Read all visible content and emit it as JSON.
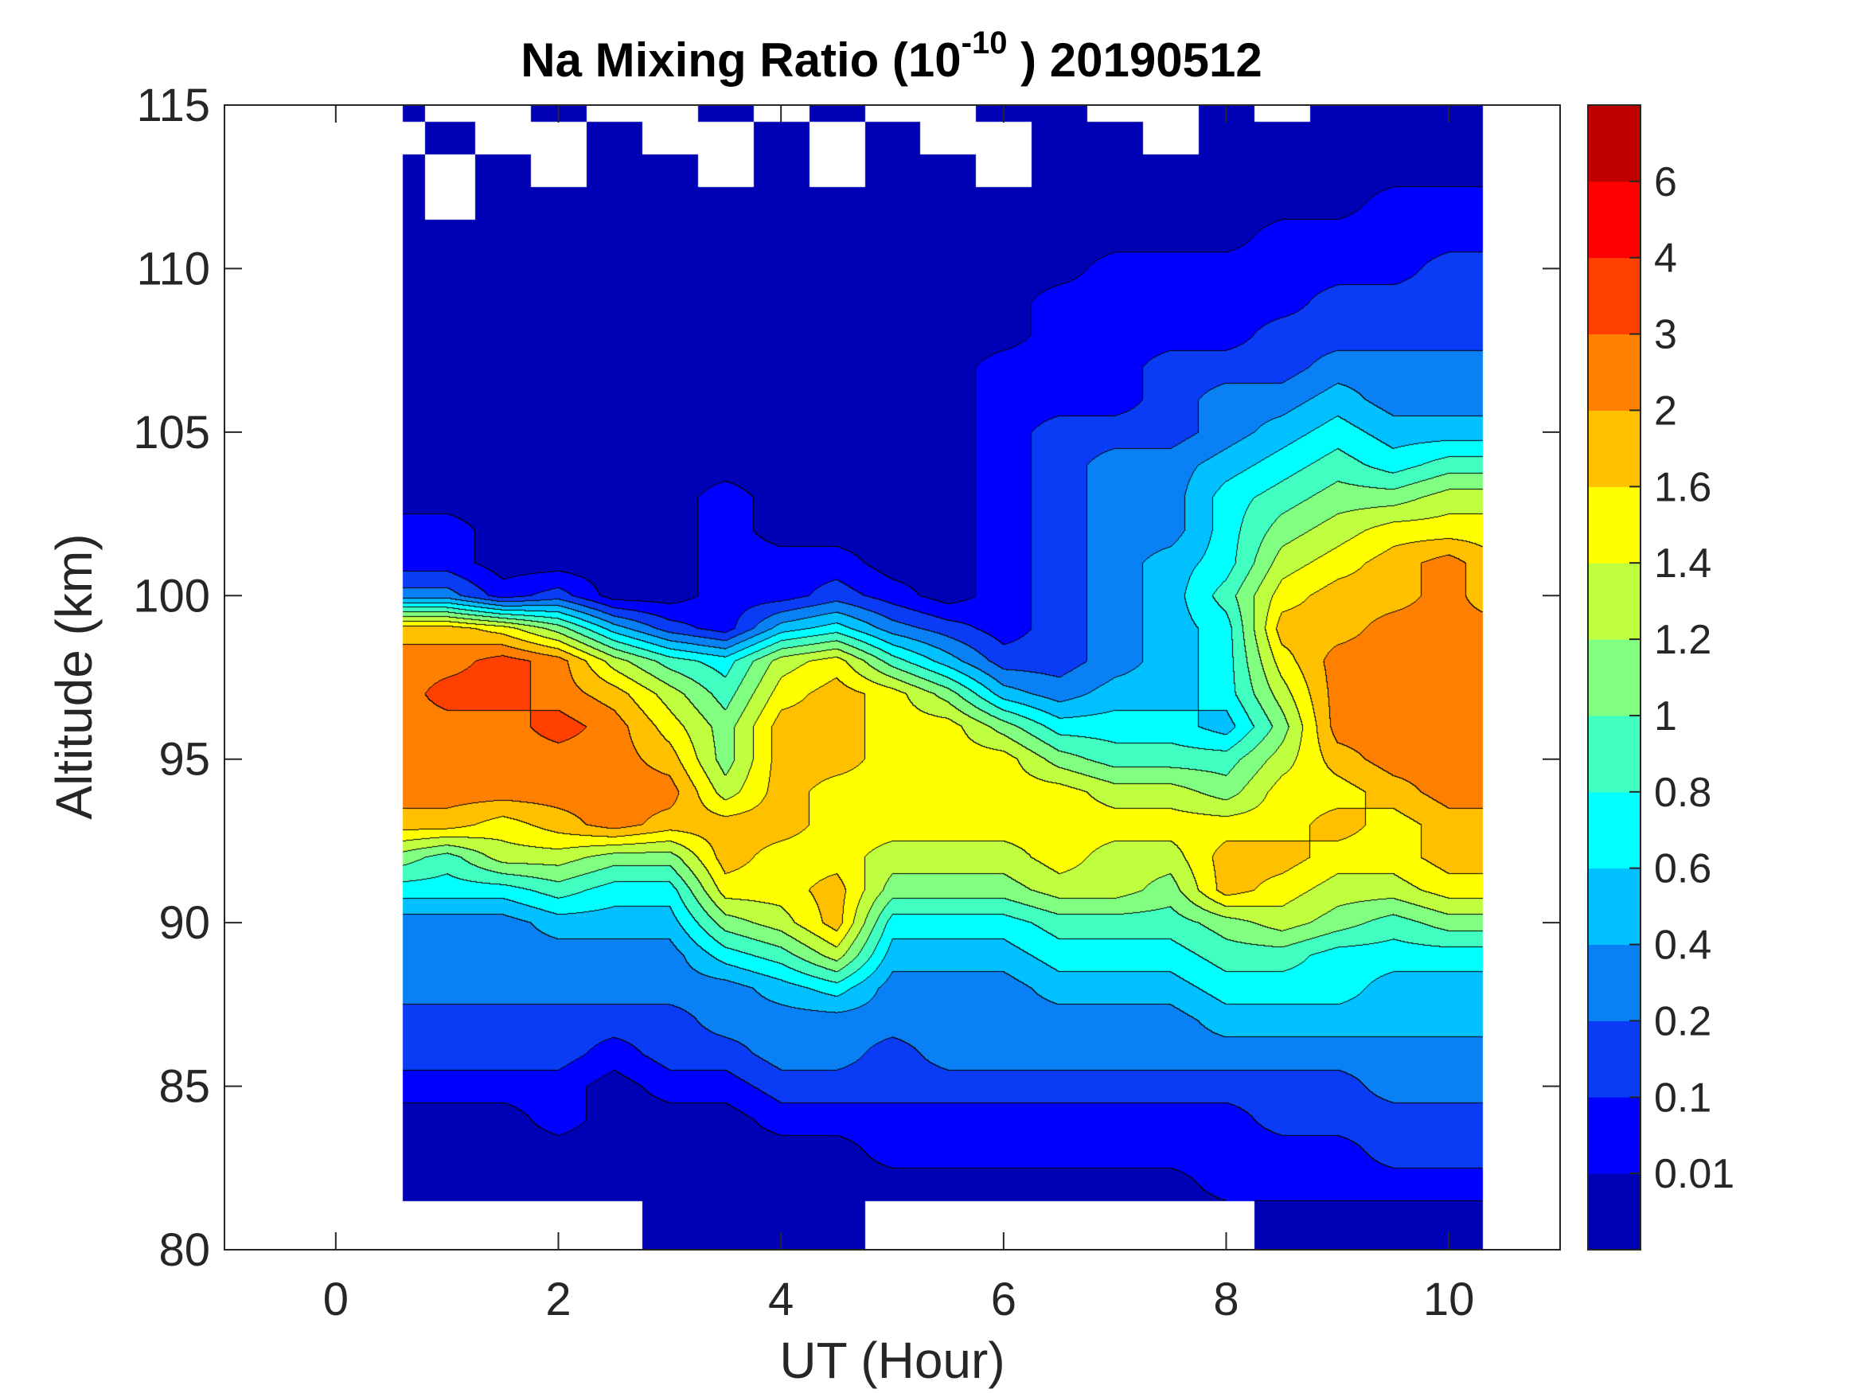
{
  "chart_data": {
    "type": "heatmap",
    "subtype": "filled-contour",
    "title_main": "Na Mixing Ratio (10",
    "title_sup": "-10",
    "title_tail": " ) 20190512",
    "xlabel": "UT (Hour)",
    "ylabel": "Altitude (km)",
    "xlim": [
      -1,
      11
    ],
    "ylim": [
      80,
      115
    ],
    "xticks": [
      0,
      2,
      4,
      6,
      8,
      10
    ],
    "yticks": [
      80,
      85,
      90,
      95,
      100,
      105,
      110,
      115
    ],
    "colorbar": {
      "levels": [
        "0.01",
        "0.1",
        "0.2",
        "0.4",
        "0.6",
        "0.8",
        "1",
        "1.2",
        "1.4",
        "1.6",
        "2",
        "3",
        "4",
        "6"
      ],
      "colors": [
        "#0000B4",
        "#0000FF",
        "#0A3CF5",
        "#0A80F5",
        "#00C0FF",
        "#00FFFF",
        "#40FFC0",
        "#80FF80",
        "#C0FF40",
        "#FFFF00",
        "#FFC000",
        "#FF8000",
        "#FF4000",
        "#FF0000",
        "#C00000"
      ]
    },
    "grid_times": [
      0.6,
      1,
      1.5,
      2,
      2.5,
      3,
      3.5,
      4,
      4.5,
      5,
      5.5,
      6,
      6.5,
      7,
      7.5,
      8,
      8.5,
      9,
      9.5,
      10,
      10.3
    ],
    "grid_altitudes_top_to_bottom": [
      115,
      114,
      113,
      112,
      111,
      110,
      109,
      108,
      107,
      106,
      105,
      104,
      103,
      102,
      101,
      100,
      99,
      98,
      97,
      96,
      95,
      94,
      93,
      92,
      91,
      90,
      89,
      88,
      87,
      86,
      85,
      84,
      83,
      82,
      81
    ],
    "band_index_rows": [
      "0..0..0.0..00..0.0000",
      ".0..0..0.0..00.000000",
      "0.0.00.0.00.000000000",
      "0.0000000000000000111",
      "000000000000000011111",
      "000000000000011111122",
      "000000000000111112222",
      "000000000000111122222",
      "000000000001112223333",
      "000000000001112334333",
      "000000000001222345444",
      "000000000001233456566",
      "000000100001233567788",
      "110000100001233578999",
      "110000111001234589aba",
      "33120011210123469aaba",
      "aa97421453212345aabbb",
      "bbcb8658964223459bbbb",
      "bccba869a97434458bbbb",
      "bbbcb97aa99755547bbbb",
      "bbbbba7aa99976668abbb",
      "bbbbbb8a9999988799abb",
      "aa9abaaa999999999a9aa",
      "768877a99888988aa99aa",
      "55565599a777887a98899",
      "33344478a555666787677",
      "333333568444555665555",
      "333333345333444555444",
      "222222333333333444444",
      "222212233233333333333",
      "111101122222222222333",
      "000100011111111122222",
      "000000000111111111222",
      "000000000000000111111",
      ".....0000.......00000"
    ]
  }
}
